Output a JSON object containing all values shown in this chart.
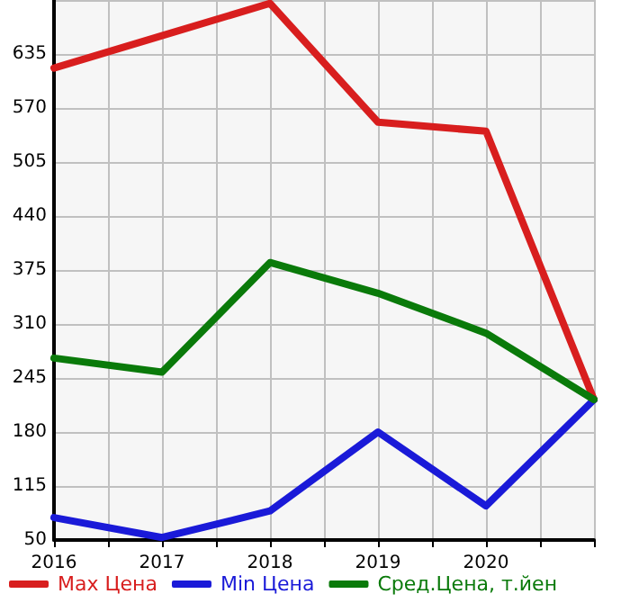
{
  "chart_data": {
    "type": "line",
    "x": [
      2016,
      2017,
      2018,
      2019,
      2020,
      2021
    ],
    "series": [
      {
        "name": "Max Цена",
        "color": "#d81e1e",
        "values": [
          618,
          657,
          696,
          553,
          542,
          219
        ]
      },
      {
        "name": "Min Цена",
        "color": "#1a1ad8",
        "values": [
          77,
          53,
          85,
          180,
          91,
          219
        ]
      },
      {
        "name": "Сред.Цена, т.йен",
        "color": "#0a7a0a",
        "values": [
          269,
          252,
          384,
          347,
          299,
          219
        ]
      }
    ],
    "xlim": [
      2016,
      2021
    ],
    "xticks": [
      2016,
      {
        "value": 2016.5,
        "label": null
      },
      2017,
      {
        "value": 2017.5,
        "label": null
      },
      2018,
      {
        "value": 2018.5,
        "label": null
      },
      2019,
      {
        "value": 2019.5,
        "label": null
      },
      2020,
      {
        "value": 2020.5,
        "label": null
      },
      {
        "value": 2021,
        "label": null
      }
    ],
    "ylim": [
      50,
      700
    ],
    "yticks": [
      50,
      115,
      180,
      245,
      310,
      375,
      440,
      505,
      570,
      635,
      {
        "value": 700,
        "label": null
      }
    ],
    "grid": true,
    "legend": "bottom",
    "marker": "none",
    "line_style": "solid"
  }
}
